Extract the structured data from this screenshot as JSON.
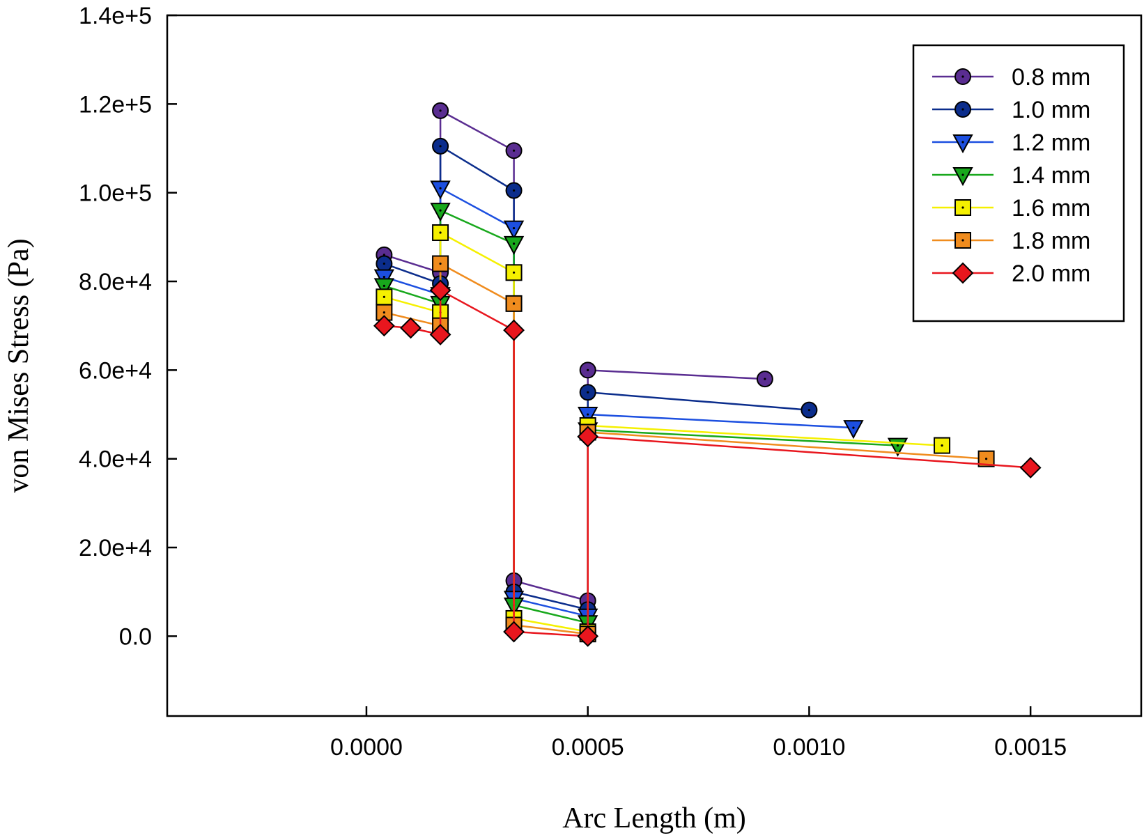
{
  "chart_data": {
    "type": "line",
    "title": "",
    "xlabel": "Arc Length (m)",
    "ylabel": "von Mises Stress (Pa)",
    "xlim": [
      -0.00045,
      0.00175
    ],
    "ylim": [
      -18000,
      140000
    ],
    "xticks": [
      0.0,
      0.0005,
      0.001,
      0.0015
    ],
    "xtick_labels": [
      "0.0000",
      "0.0005",
      "0.0010",
      "0.0015"
    ],
    "yticks": [
      0,
      20000,
      40000,
      60000,
      80000,
      100000,
      120000,
      140000
    ],
    "ytick_labels": [
      "0.0",
      "2.0e+4",
      "4.0e+4",
      "6.0e+4",
      "8.0e+4",
      "1.0e+5",
      "1.2e+5",
      "1.4e+5"
    ],
    "grid": false,
    "legend_position": "top-right",
    "series": [
      {
        "name": "0.8 mm",
        "color": "#5a2d91",
        "marker": "circle",
        "x": [
          4e-05,
          0.000167,
          0.000167,
          0.000333,
          0.000333,
          0.0005,
          0.0005,
          0.0009
        ],
        "y": [
          86000,
          82000,
          118500,
          109500,
          12500,
          8000,
          60000,
          58000
        ]
      },
      {
        "name": "1.0 mm",
        "color": "#0b2d8c",
        "marker": "circle",
        "x": [
          4e-05,
          0.000167,
          0.000167,
          0.000333,
          0.000333,
          0.0005,
          0.0005,
          0.001
        ],
        "y": [
          84000,
          79500,
          110500,
          100500,
          10000,
          6000,
          55000,
          51000
        ]
      },
      {
        "name": "1.2 mm",
        "color": "#1c4fe0",
        "marker": "triangle-down",
        "x": [
          4e-05,
          0.000167,
          0.000167,
          0.000333,
          0.000333,
          0.0005,
          0.0005,
          0.0011
        ],
        "y": [
          81000,
          77000,
          101000,
          92000,
          8500,
          4500,
          50000,
          47000
        ]
      },
      {
        "name": "1.4 mm",
        "color": "#18a81c",
        "marker": "triangle-down",
        "x": [
          4e-05,
          0.000167,
          0.000167,
          0.000333,
          0.000333,
          0.0005,
          0.0005,
          0.0012
        ],
        "y": [
          79000,
          75000,
          96000,
          88500,
          7000,
          3000,
          46500,
          43000
        ]
      },
      {
        "name": "1.6 mm",
        "color": "#f5f000",
        "marker": "square",
        "x": [
          4e-05,
          0.000167,
          0.000167,
          0.000333,
          0.000333,
          0.0005,
          0.0005,
          0.0013
        ],
        "y": [
          76500,
          73000,
          91000,
          82000,
          4000,
          1000,
          47500,
          43000
        ]
      },
      {
        "name": "1.8 mm",
        "color": "#f08c1e",
        "marker": "square",
        "x": [
          4e-05,
          0.000167,
          0.000167,
          0.000333,
          0.000333,
          0.0005,
          0.0005,
          0.0014
        ],
        "y": [
          73000,
          70000,
          84000,
          75000,
          2500,
          500,
          46000,
          40000
        ]
      },
      {
        "name": "2.0 mm",
        "color": "#e8161e",
        "marker": "diamond",
        "x": [
          4e-05,
          0.0001,
          0.000167,
          0.000167,
          0.000333,
          0.000333,
          0.0005,
          0.0005,
          0.0015
        ],
        "y": [
          70000,
          69500,
          68000,
          78000,
          69000,
          1000,
          0,
          45000,
          38000
        ]
      }
    ]
  }
}
